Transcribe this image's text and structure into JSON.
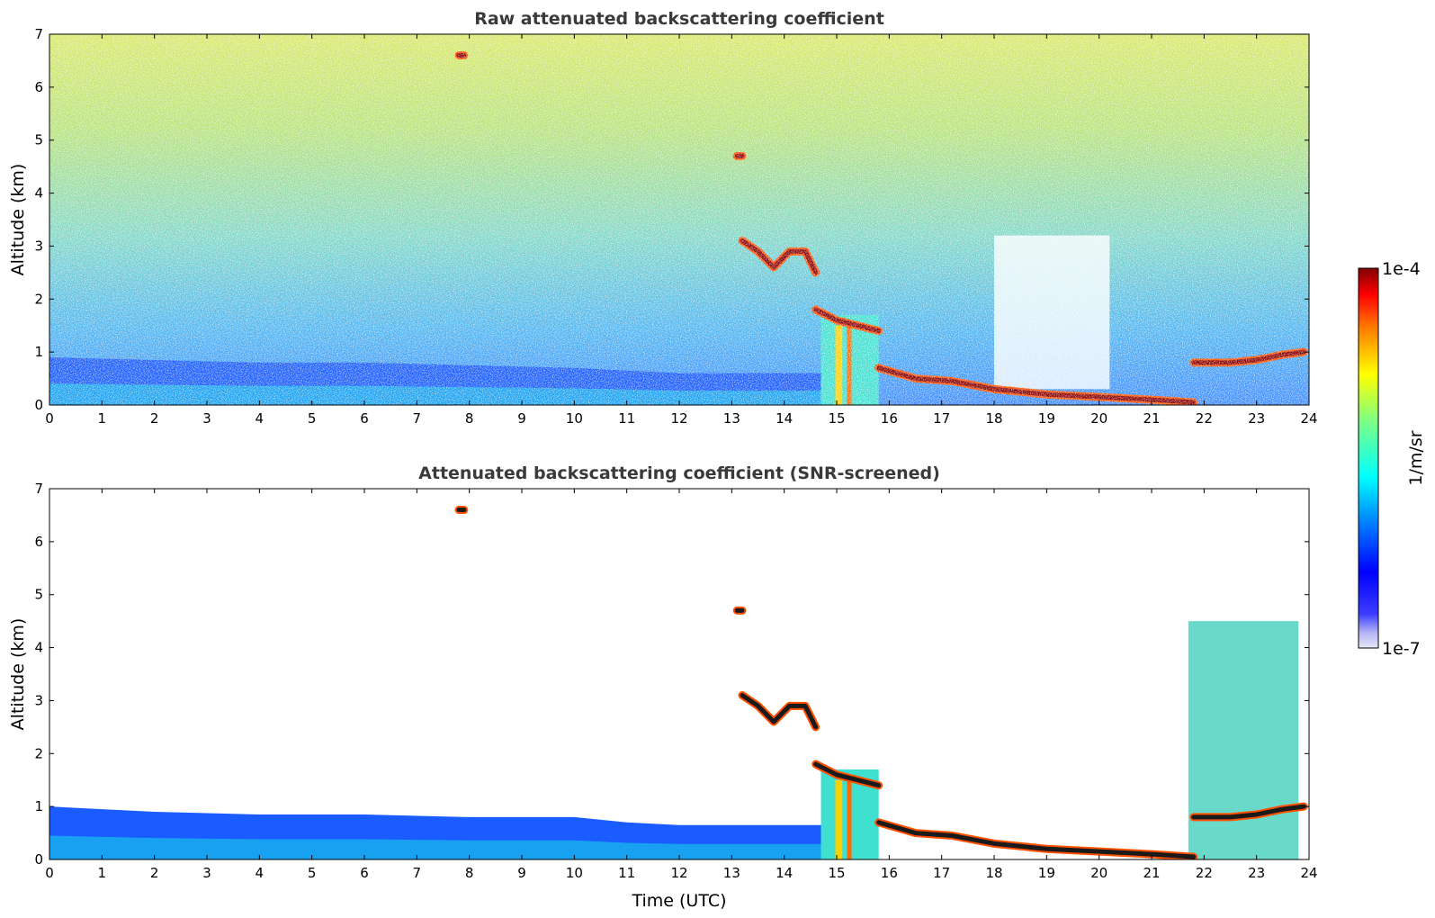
{
  "chart_data": [
    {
      "type": "heatmap",
      "title": "Raw attenuated backscattering coefficient",
      "ylabel": "Altitude (km)",
      "xlabel": "",
      "xlim": [
        0,
        24
      ],
      "ylim": [
        0,
        7
      ],
      "xticks": [
        "0",
        "1",
        "2",
        "3",
        "4",
        "5",
        "6",
        "7",
        "8",
        "9",
        "10",
        "11",
        "12",
        "13",
        "14",
        "15",
        "16",
        "17",
        "18",
        "19",
        "20",
        "21",
        "22",
        "23",
        "24"
      ],
      "yticks": [
        "0",
        "1",
        "2",
        "3",
        "4",
        "5",
        "6",
        "7"
      ],
      "grid": false,
      "layers": {
        "boundary_layer_top_km": [
          [
            0,
            0.9
          ],
          [
            2,
            0.85
          ],
          [
            4,
            0.8
          ],
          [
            6,
            0.8
          ],
          [
            8,
            0.75
          ],
          [
            10,
            0.7
          ],
          [
            11,
            0.65
          ],
          [
            12,
            0.6
          ],
          [
            14,
            0.6
          ],
          [
            14.7,
            0.6
          ]
        ],
        "cloud_layers": [
          {
            "x": [
              13.2,
              13.5,
              13.8,
              14.1,
              14.4,
              14.6
            ],
            "y": [
              3.1,
              2.9,
              2.6,
              2.9,
              2.9,
              2.5
            ]
          },
          {
            "x": [
              14.6,
              15.0,
              15.4,
              15.8
            ],
            "y": [
              1.8,
              1.6,
              1.5,
              1.4
            ]
          },
          {
            "x": [
              15.8,
              16.5,
              17.2,
              18.0,
              19.0,
              20.0,
              21.0,
              21.8
            ],
            "y": [
              0.7,
              0.5,
              0.45,
              0.3,
              0.2,
              0.15,
              0.1,
              0.05
            ]
          },
          {
            "x": [
              21.8,
              22.5,
              23.0,
              23.5,
              23.9
            ],
            "y": [
              0.8,
              0.8,
              0.85,
              0.95,
              1.0
            ]
          },
          {
            "x": [
              13.1,
              13.2
            ],
            "y": [
              4.7,
              4.7
            ]
          },
          {
            "x": [
              7.8,
              7.9
            ],
            "y": [
              6.6,
              6.6
            ]
          }
        ],
        "precipitation_intervals": [
          [
            14.7,
            15.8
          ]
        ],
        "noise_level": "high"
      }
    },
    {
      "type": "heatmap",
      "title": "Attenuated backscattering coefficient (SNR-screened)",
      "ylabel": "Altitude (km)",
      "xlabel": "Time (UTC)",
      "xlim": [
        0,
        24
      ],
      "ylim": [
        0,
        7
      ],
      "xticks": [
        "0",
        "1",
        "2",
        "3",
        "4",
        "5",
        "6",
        "7",
        "8",
        "9",
        "10",
        "11",
        "12",
        "13",
        "14",
        "15",
        "16",
        "17",
        "18",
        "19",
        "20",
        "21",
        "22",
        "23",
        "24"
      ],
      "yticks": [
        "0",
        "1",
        "2",
        "3",
        "4",
        "5",
        "6",
        "7"
      ],
      "grid": false,
      "layers": {
        "boundary_layer_top_km": [
          [
            0,
            1.0
          ],
          [
            1,
            0.95
          ],
          [
            2,
            0.9
          ],
          [
            4,
            0.85
          ],
          [
            6,
            0.85
          ],
          [
            8,
            0.8
          ],
          [
            10,
            0.8
          ],
          [
            11,
            0.7
          ],
          [
            12,
            0.65
          ],
          [
            14,
            0.65
          ],
          [
            14.7,
            0.65
          ]
        ],
        "cloud_layers": [
          {
            "x": [
              13.2,
              13.5,
              13.8,
              14.1,
              14.4,
              14.6
            ],
            "y": [
              3.1,
              2.9,
              2.6,
              2.9,
              2.9,
              2.5
            ]
          },
          {
            "x": [
              14.6,
              15.0,
              15.4,
              15.8
            ],
            "y": [
              1.8,
              1.6,
              1.5,
              1.4
            ]
          },
          {
            "x": [
              15.8,
              16.5,
              17.2,
              18.0,
              19.0,
              20.0,
              21.0,
              21.8
            ],
            "y": [
              0.7,
              0.5,
              0.45,
              0.3,
              0.2,
              0.15,
              0.1,
              0.05
            ]
          },
          {
            "x": [
              21.8,
              22.5,
              23.0,
              23.5,
              23.9
            ],
            "y": [
              0.8,
              0.8,
              0.85,
              0.95,
              1.0
            ]
          },
          {
            "x": [
              13.1,
              13.2
            ],
            "y": [
              4.7,
              4.7
            ]
          },
          {
            "x": [
              7.8,
              7.9
            ],
            "y": [
              6.6,
              6.6
            ]
          }
        ],
        "precipitation_intervals": [
          [
            14.7,
            15.8
          ]
        ],
        "aerosol_column": {
          "x": [
            21.7,
            23.8
          ],
          "top_km": 4.5
        },
        "noise_level": "none"
      }
    }
  ],
  "colorbar": {
    "label": "1/m/sr",
    "min_label": "1e-7",
    "max_label": "1e-4",
    "colormap": "jet",
    "low_color": "#e6e6fa",
    "high_color": "#7f0000"
  }
}
